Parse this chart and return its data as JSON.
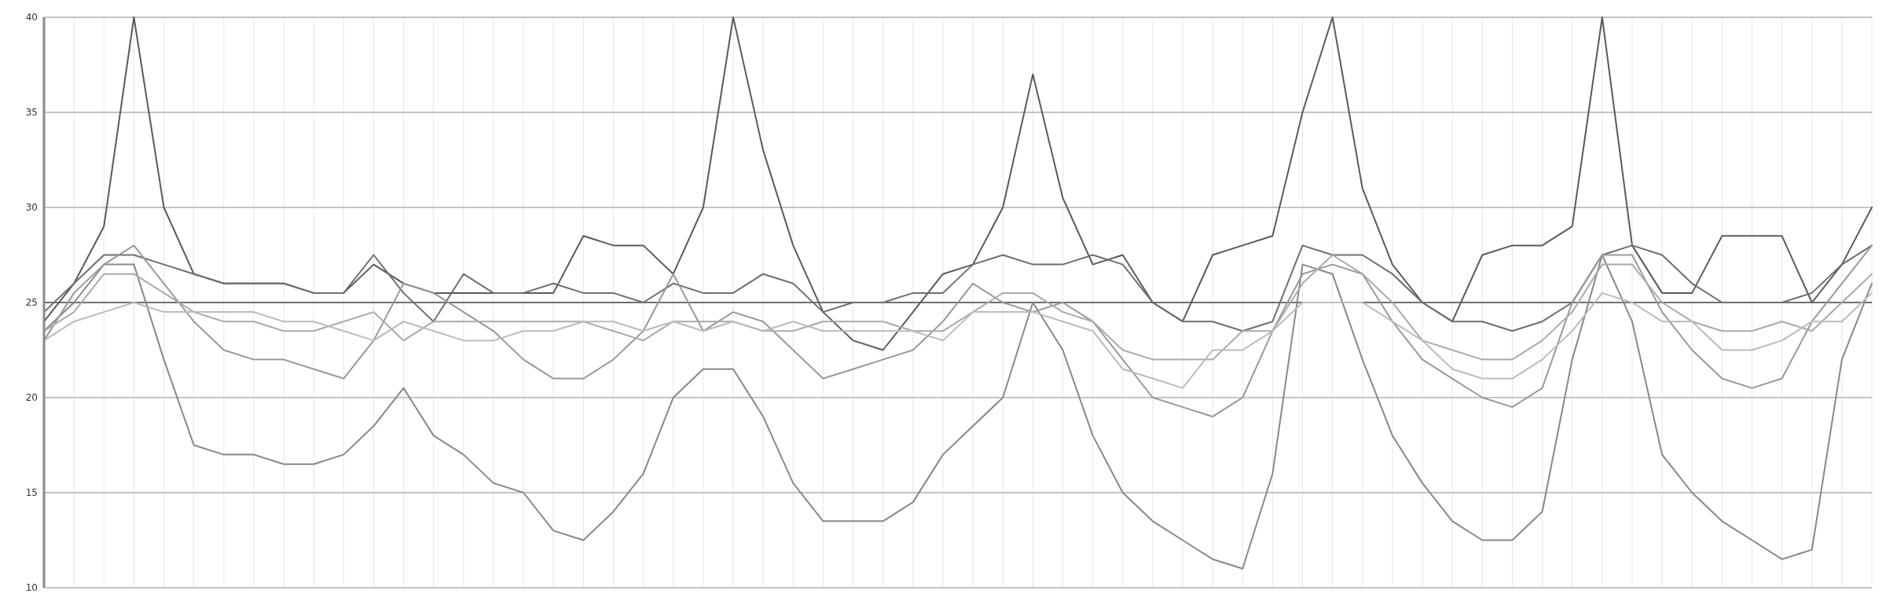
{
  "chart_data": {
    "type": "line",
    "categories": [
      null,
      null,
      null,
      null,
      null,
      null,
      null,
      null,
      null,
      null,
      null,
      null,
      null,
      null,
      null,
      null,
      null,
      null,
      null,
      null,
      null,
      null,
      null,
      null,
      null,
      null,
      null,
      null,
      null,
      null,
      null,
      null,
      null,
      null,
      null,
      null,
      null,
      null,
      null,
      null,
      null,
      null,
      null,
      null,
      null,
      null,
      null,
      null,
      null,
      null,
      null,
      null,
      null,
      null,
      null,
      null,
      null,
      null,
      null,
      null,
      null,
      null
    ],
    "ylim": [
      10,
      40
    ],
    "yticks": [
      10,
      15,
      20,
      25,
      30,
      35,
      40
    ],
    "grid": true,
    "marker": "none",
    "line_style": "solid",
    "tick_labels": "y",
    "ref_lines": [
      {
        "axis": "y",
        "value": 25,
        "color": "#707070"
      }
    ],
    "series": [
      {
        "color": "#5a5a5a",
        "values": [
          24,
          26,
          29,
          40,
          30,
          26.5,
          26,
          26,
          26,
          25.5,
          25.5,
          27,
          26,
          25.5,
          25.5,
          25.5,
          25.5,
          25.5,
          28.5,
          28,
          28,
          26.5,
          30,
          40,
          33,
          28,
          24.5,
          23,
          22.5,
          24.5,
          26.5,
          27,
          30,
          37,
          30.5,
          27,
          27.5,
          25,
          24,
          27.5,
          28,
          28.5,
          35,
          40,
          31,
          27,
          25,
          24,
          27.5,
          28,
          28,
          29,
          40,
          28,
          25.5,
          25.5,
          28.5,
          28.5,
          28.5,
          25,
          27,
          30
        ]
      },
      {
        "color": "#888888",
        "values": [
          23.5,
          25,
          27,
          27,
          22,
          17.5,
          17,
          17,
          16.5,
          16.5,
          17,
          18.5,
          20.5,
          18,
          17,
          15.5,
          15,
          13,
          12.5,
          14,
          16,
          20,
          21.5,
          21.5,
          19,
          15.5,
          13.5,
          13.5,
          13.5,
          14.5,
          17,
          18.5,
          20,
          25,
          22.5,
          18,
          15,
          13.5,
          12.5,
          11.5,
          11,
          16,
          27,
          26.5,
          22,
          18,
          15.5,
          13.5,
          12.5,
          12.5,
          14,
          22,
          27.5,
          24,
          17,
          15,
          13.5,
          12.5,
          11.5,
          12,
          22,
          26
        ]
      },
      {
        "color": "#6e6e6e",
        "values": [
          24.5,
          26,
          27.5,
          27.5,
          27,
          26.5,
          26,
          26,
          26,
          25.5,
          25.5,
          27.5,
          25.5,
          24,
          26.5,
          25.5,
          25.5,
          26,
          25.5,
          25.5,
          25,
          26,
          25.5,
          25.5,
          26.5,
          26,
          24.5,
          25,
          25,
          25.5,
          25.5,
          27,
          27.5,
          27,
          27,
          27.5,
          27,
          25,
          24,
          24,
          23.5,
          24,
          28,
          27.5,
          27.5,
          26.5,
          25,
          24,
          24,
          23.5,
          24,
          25,
          27.5,
          28,
          27.5,
          26,
          25,
          25,
          25,
          25.5,
          27,
          28
        ]
      },
      {
        "color": "#999999",
        "values": [
          23,
          25.5,
          27,
          28,
          26,
          24,
          22.5,
          22,
          22,
          21.5,
          21,
          23,
          26,
          25.5,
          24.5,
          23.5,
          22,
          21,
          21,
          22,
          23.5,
          26.5,
          23.5,
          24.5,
          24,
          22.5,
          21,
          21.5,
          22,
          22.5,
          24,
          26,
          25,
          24.5,
          25,
          24,
          22,
          20,
          19.5,
          19,
          20,
          23.5,
          26.5,
          27,
          26.5,
          24,
          22,
          21,
          20,
          19.5,
          20.5,
          25,
          27.5,
          27.5,
          24.5,
          22.5,
          21,
          20.5,
          21,
          24,
          26,
          28
        ]
      },
      {
        "color": "#aaaaaa",
        "values": [
          23.5,
          24.5,
          26.5,
          26.5,
          25.5,
          24.5,
          24,
          24,
          23.5,
          23.5,
          24,
          24.5,
          23,
          24,
          24,
          24,
          24,
          24,
          24,
          23.5,
          23,
          24,
          24,
          24,
          23.5,
          23.5,
          24,
          24,
          24,
          23.5,
          23.5,
          24.5,
          25.5,
          25.5,
          24.5,
          24,
          22.5,
          22,
          22,
          22,
          23.5,
          23.5,
          26,
          27.5,
          26.5,
          25,
          23,
          22.5,
          22,
          22,
          23,
          24.5,
          27,
          27,
          25,
          24,
          23.5,
          23.5,
          24,
          23.5,
          25,
          26.5
        ]
      },
      {
        "color": "#bbbbbb",
        "values": [
          23,
          24,
          24.5,
          25,
          24.5,
          24.5,
          24.5,
          24.5,
          24,
          24,
          23.5,
          23,
          24,
          23.5,
          23,
          23,
          23.5,
          23.5,
          24,
          24,
          23.5,
          24,
          23.5,
          24,
          23.5,
          24,
          23.5,
          23.5,
          23.5,
          23.5,
          23,
          24.5,
          24.5,
          24.5,
          24,
          23.5,
          21.5,
          21,
          20.5,
          22.5,
          22.5,
          23.5,
          25,
          25,
          25,
          24,
          23,
          21.5,
          21,
          21,
          22,
          23.5,
          25.5,
          25,
          24,
          24,
          22.5,
          22.5,
          23,
          24,
          24,
          25.5
        ]
      }
    ]
  }
}
